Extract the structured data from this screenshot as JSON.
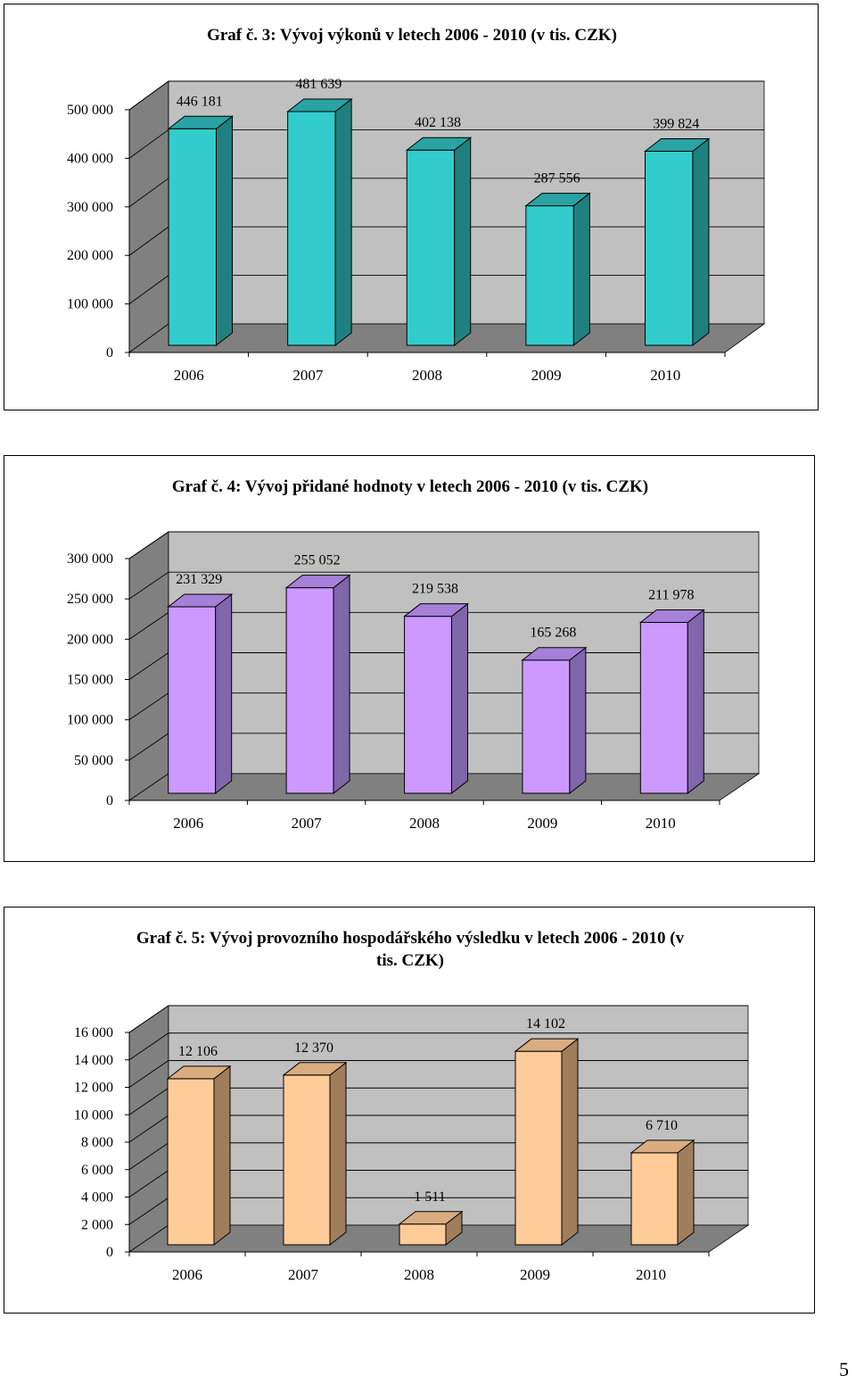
{
  "page": {
    "number": "5"
  },
  "chart_data": [
    {
      "type": "bar",
      "title": "Graf č. 3: Vývoj výkonů v letech 2006 - 2010 (v tis. CZK)",
      "title_lines": [
        "Graf č. 3: Vývoj výkonů v letech 2006 - 2010 (v tis. CZK)"
      ],
      "categories": [
        "2006",
        "2007",
        "2008",
        "2009",
        "2010"
      ],
      "values": [
        446181,
        481639,
        402138,
        287556,
        399824
      ],
      "value_labels": [
        "446 181",
        "481 639",
        "402 138",
        "287 556",
        "399 824"
      ],
      "ylim": [
        0,
        500000
      ],
      "yticks": [
        0,
        100000,
        200000,
        300000,
        400000,
        500000
      ],
      "ytick_labels": [
        "0",
        "100 000",
        "200 000",
        "300 000",
        "400 000",
        "500 000"
      ],
      "grid": true,
      "style": "3d",
      "colors": {
        "front": "#33CCCC",
        "side": "#208080",
        "top": "#29A3A3"
      }
    },
    {
      "type": "bar",
      "title": "Graf č. 4: Vývoj přidané hodnoty v letech 2006 - 2010 (v tis. CZK)",
      "title_lines": [
        "Graf č. 4: Vývoj přidané hodnoty v letech 2006 - 2010 (v tis. CZK)"
      ],
      "categories": [
        "2006",
        "2007",
        "2008",
        "2009",
        "2010"
      ],
      "values": [
        231329,
        255052,
        219538,
        165268,
        211978
      ],
      "value_labels": [
        "231 329",
        "255 052",
        "219 538",
        "165 268",
        "211 978"
      ],
      "ylim": [
        0,
        300000
      ],
      "yticks": [
        0,
        50000,
        100000,
        150000,
        200000,
        250000,
        300000
      ],
      "ytick_labels": [
        "0",
        "50 000",
        "100 000",
        "150 000",
        "200 000",
        "250 000",
        "300 000"
      ],
      "grid": true,
      "style": "3d",
      "colors": {
        "front": "#CC99FF",
        "side": "#8066AA",
        "top": "#A680D9"
      }
    },
    {
      "type": "bar",
      "title": "Graf č. 5: Vývoj provozního hospodářského výsledku v letech 2006 - 2010 (v tis. CZK)",
      "title_lines": [
        "Graf č. 5: Vývoj provozního hospodářského výsledku v letech 2006 - 2010 (v",
        "tis. CZK)"
      ],
      "categories": [
        "2006",
        "2007",
        "2008",
        "2009",
        "2010"
      ],
      "values": [
        12106,
        12370,
        1511,
        14102,
        6710
      ],
      "value_labels": [
        "12 106",
        "12 370",
        "1 511",
        "14 102",
        "6 710"
      ],
      "ylim": [
        0,
        16000
      ],
      "yticks": [
        0,
        2000,
        4000,
        6000,
        8000,
        10000,
        12000,
        14000,
        16000
      ],
      "ytick_labels": [
        "0",
        "2 000",
        "4 000",
        "6 000",
        "8 000",
        "10 000",
        "12 000",
        "14 000",
        "16 000"
      ],
      "grid": true,
      "style": "3d",
      "colors": {
        "front": "#FFCC99",
        "side": "#A07E5C",
        "top": "#D9AD80"
      }
    }
  ]
}
